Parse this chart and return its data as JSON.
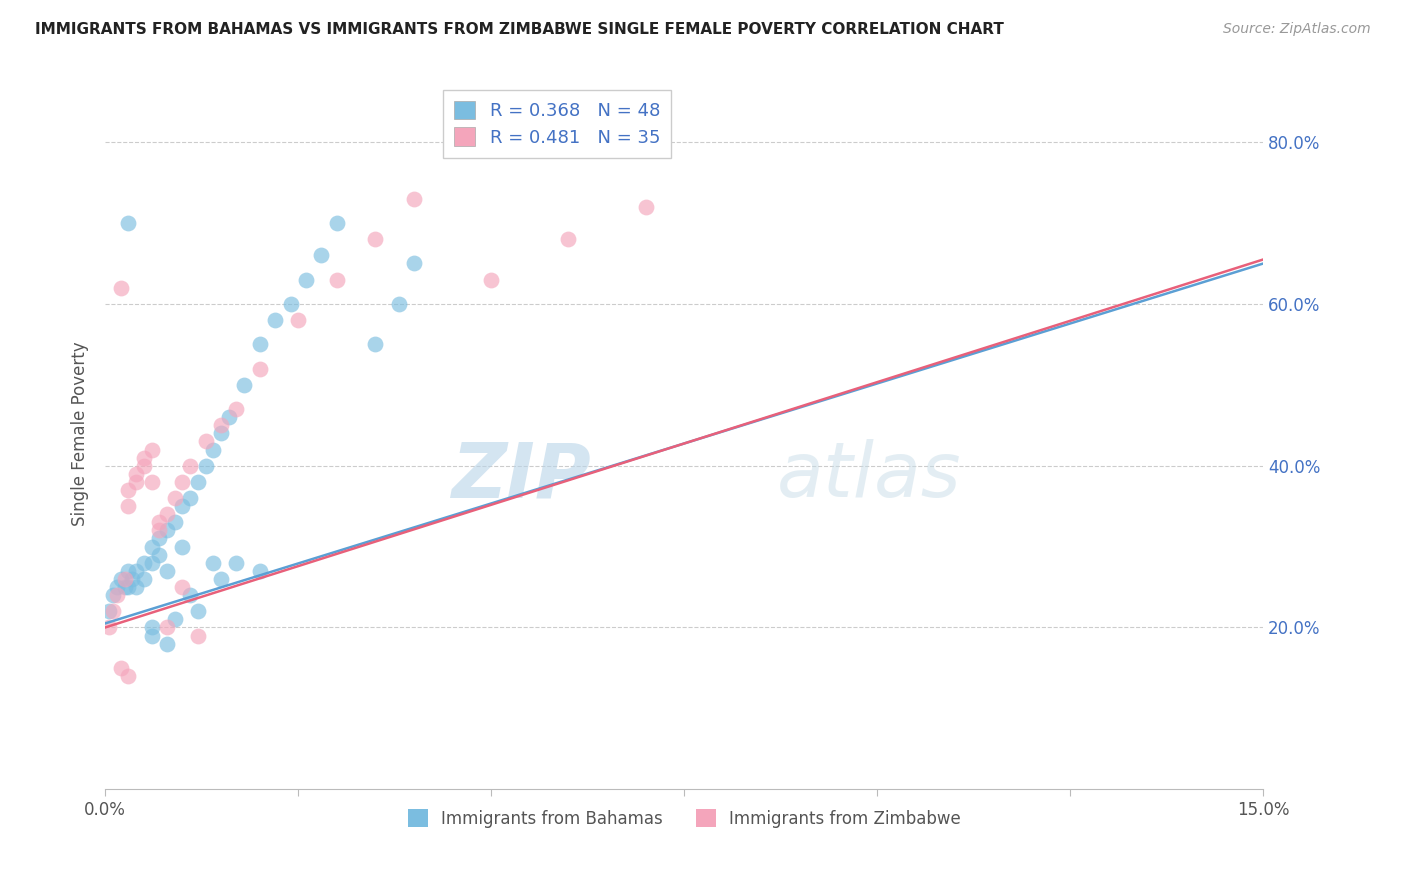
{
  "title": "IMMIGRANTS FROM BAHAMAS VS IMMIGRANTS FROM ZIMBABWE SINGLE FEMALE POVERTY CORRELATION CHART",
  "source": "Source: ZipAtlas.com",
  "ylabel": "Single Female Poverty",
  "yaxis_labels": [
    "20.0%",
    "40.0%",
    "60.0%",
    "80.0%"
  ],
  "yaxis_values": [
    0.2,
    0.4,
    0.6,
    0.8
  ],
  "legend_blue_r": "R = 0.368",
  "legend_blue_n": "N = 48",
  "legend_pink_r": "R = 0.481",
  "legend_pink_n": "N = 35",
  "label_blue": "Immigrants from Bahamas",
  "label_pink": "Immigrants from Zimbabwe",
  "xlim": [
    0.0,
    0.15
  ],
  "ylim": [
    0.0,
    0.88
  ],
  "background_color": "#ffffff",
  "blue_color": "#7bbde0",
  "pink_color": "#f4a5bb",
  "line_blue": "#5b9fd4",
  "line_pink": "#e8607a",
  "watermark_zip": "ZIP",
  "watermark_atlas": "atlas",
  "blue_x": [
    0.0005,
    0.001,
    0.0015,
    0.002,
    0.0025,
    0.003,
    0.003,
    0.0035,
    0.004,
    0.004,
    0.005,
    0.005,
    0.006,
    0.006,
    0.007,
    0.007,
    0.008,
    0.008,
    0.009,
    0.01,
    0.011,
    0.012,
    0.013,
    0.014,
    0.015,
    0.016,
    0.018,
    0.02,
    0.022,
    0.024,
    0.026,
    0.028,
    0.03,
    0.035,
    0.038,
    0.04,
    0.015,
    0.017,
    0.009,
    0.011,
    0.003,
    0.006,
    0.01,
    0.014,
    0.008,
    0.012,
    0.02,
    0.006
  ],
  "blue_y": [
    0.22,
    0.24,
    0.25,
    0.26,
    0.25,
    0.27,
    0.25,
    0.26,
    0.27,
    0.25,
    0.28,
    0.26,
    0.3,
    0.28,
    0.31,
    0.29,
    0.32,
    0.27,
    0.33,
    0.35,
    0.36,
    0.38,
    0.4,
    0.42,
    0.44,
    0.46,
    0.5,
    0.55,
    0.58,
    0.6,
    0.63,
    0.66,
    0.7,
    0.55,
    0.6,
    0.65,
    0.26,
    0.28,
    0.21,
    0.24,
    0.7,
    0.2,
    0.3,
    0.28,
    0.18,
    0.22,
    0.27,
    0.19
  ],
  "pink_x": [
    0.0005,
    0.001,
    0.0015,
    0.002,
    0.0025,
    0.003,
    0.004,
    0.005,
    0.006,
    0.007,
    0.008,
    0.009,
    0.01,
    0.011,
    0.013,
    0.015,
    0.017,
    0.02,
    0.025,
    0.03,
    0.035,
    0.04,
    0.05,
    0.06,
    0.07,
    0.003,
    0.004,
    0.005,
    0.006,
    0.007,
    0.002,
    0.003,
    0.008,
    0.01,
    0.012
  ],
  "pink_y": [
    0.2,
    0.22,
    0.24,
    0.62,
    0.26,
    0.35,
    0.38,
    0.4,
    0.42,
    0.32,
    0.34,
    0.36,
    0.38,
    0.4,
    0.43,
    0.45,
    0.47,
    0.52,
    0.58,
    0.63,
    0.68,
    0.73,
    0.63,
    0.68,
    0.72,
    0.37,
    0.39,
    0.41,
    0.38,
    0.33,
    0.15,
    0.14,
    0.2,
    0.25,
    0.19
  ]
}
